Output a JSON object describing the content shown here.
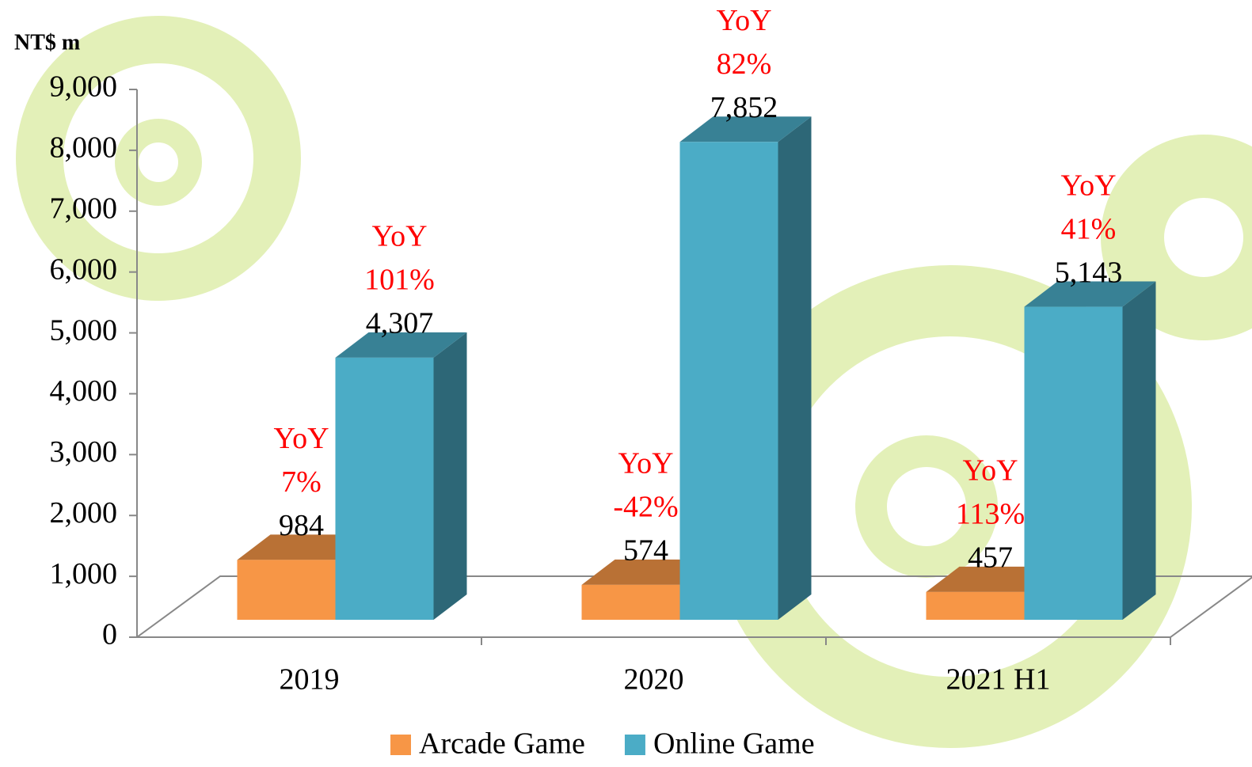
{
  "chart_data": {
    "type": "bar3d",
    "y_axis_label": "NT$ m",
    "categories": [
      "2019",
      "2020",
      "2021 H1"
    ],
    "series": [
      {
        "name": "Arcade Game",
        "color": "#f79646",
        "values": [
          984,
          574,
          457
        ],
        "value_labels": [
          "984",
          "574",
          "457"
        ],
        "yoy_labels": [
          "7%",
          "-42%",
          "113%"
        ]
      },
      {
        "name": "Online Game",
        "color": "#4bacc6",
        "values": [
          4307,
          7852,
          5143
        ],
        "value_labels": [
          "4,307",
          "7,852",
          "5,143"
        ],
        "yoy_labels": [
          "101%",
          "82%",
          "41%"
        ]
      }
    ],
    "yoy_title": "YoY",
    "annotation_color": "#ff0000",
    "ylim": [
      0,
      9000
    ],
    "yticks": [
      0,
      {
        "value": 1000,
        "label": "1,000"
      },
      {
        "value": 2000,
        "label": "2,000"
      },
      {
        "value": 3000,
        "label": "3,000"
      },
      {
        "value": 4000,
        "label": "4,000"
      },
      {
        "value": 5000,
        "label": "5,000"
      },
      {
        "value": 6000,
        "label": "6,000"
      },
      {
        "value": 7000,
        "label": "7,000"
      },
      {
        "value": 8000,
        "label": "8,000"
      },
      {
        "value": 9000,
        "label": "9,000"
      }
    ],
    "grid": false,
    "legend": "bottom"
  }
}
